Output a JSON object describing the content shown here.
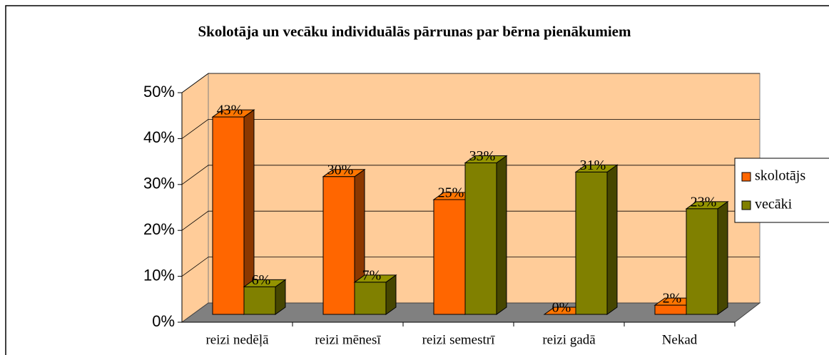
{
  "chart_data": {
    "type": "bar3d",
    "title": "Skolotāja un vecāku individuālās pārrunas par bērna pienākumiem",
    "categories": [
      "reizi nedēļā",
      "reizi mēnesī",
      "reizi semestrī",
      "reizi gadā",
      "Nekad"
    ],
    "series": [
      {
        "name": "skolotājs",
        "color": "#ff6600",
        "values": [
          43,
          30,
          25,
          0,
          2
        ],
        "value_labels": [
          "43%",
          "30%",
          "25%",
          "0%",
          "2%"
        ]
      },
      {
        "name": "vecāki",
        "color": "#808000",
        "values": [
          6,
          7,
          33,
          31,
          23
        ],
        "value_labels": [
          "6%",
          "7%",
          "33%",
          "31%",
          "23%"
        ]
      }
    ],
    "ylim": [
      0,
      50
    ],
    "yticks": [
      {
        "value": 0,
        "label": "0%"
      },
      {
        "value": 10,
        "label": "10%"
      },
      {
        "value": 20,
        "label": "20%"
      },
      {
        "value": 30,
        "label": "30%"
      },
      {
        "value": 40,
        "label": "40%"
      },
      {
        "value": 50,
        "label": "50%"
      }
    ],
    "grid": true,
    "legend": "right"
  }
}
